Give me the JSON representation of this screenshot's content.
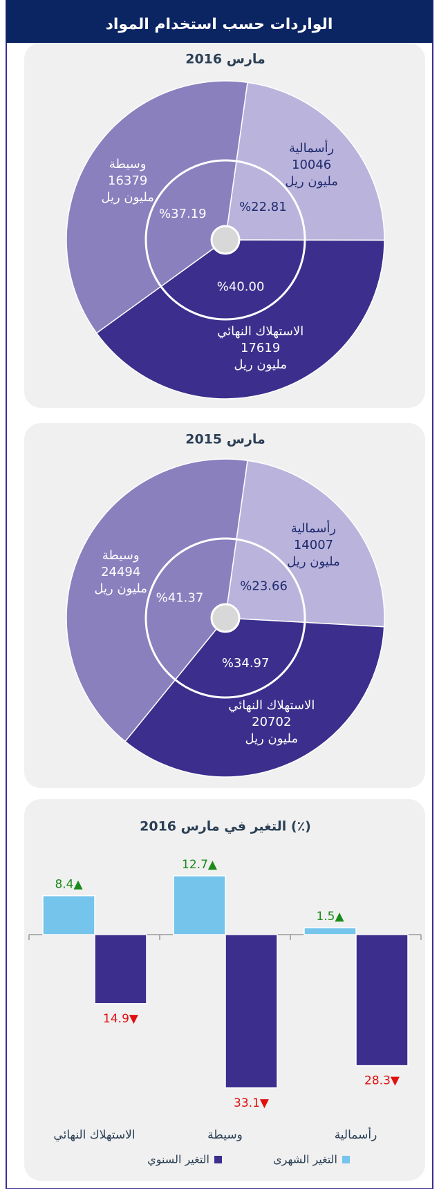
{
  "title": "الواردات حسب استخدام المواد",
  "chart_data": [
    {
      "type": "pie",
      "title": "مارس  2016",
      "unit": "مليون ريل",
      "categories": [
        "رأسمالية",
        "الاستهلاك النهائي",
        "وسيطة"
      ],
      "values": [
        10046,
        17619,
        16379
      ],
      "shares": [
        22.81,
        40.0,
        37.19
      ],
      "share_labels": [
        "%22.81",
        "%40.00",
        "%37.19"
      ],
      "colors": [
        "#bab4dc",
        "#3b2e8c",
        "#8a80be"
      ]
    },
    {
      "type": "pie",
      "title": "مارس  2015",
      "unit": "مليون ريل",
      "categories": [
        "رأسمالية",
        "الاستهلاك النهائي",
        "وسيطة"
      ],
      "values": [
        14007,
        20702,
        24494
      ],
      "shares": [
        23.66,
        34.97,
        41.37
      ],
      "share_labels": [
        "%23.66",
        "%34.97",
        "%41.37"
      ],
      "colors": [
        "#bab4dc",
        "#3b2e8c",
        "#8a80be"
      ]
    },
    {
      "type": "bar",
      "title": "التغير في مارس  2016 (٪)",
      "categories": [
        "الاستهلاك النهائي",
        "وسيطة",
        "رأسمالية"
      ],
      "series": [
        {
          "name": "التغير الشهرى",
          "color": "#74c4ec",
          "values": [
            8.4,
            12.7,
            1.5
          ],
          "value_labels": [
            "8.4▲",
            "12.7▲",
            "1.5▲"
          ],
          "label_color": "#1a8a1a"
        },
        {
          "name": "التغير السنوي",
          "color": "#3b2e8c",
          "values": [
            -14.9,
            -33.1,
            -28.3
          ],
          "value_labels": [
            "14.9▼",
            "33.1▼",
            "28.3▼"
          ],
          "label_color": "#e01010"
        }
      ]
    }
  ]
}
